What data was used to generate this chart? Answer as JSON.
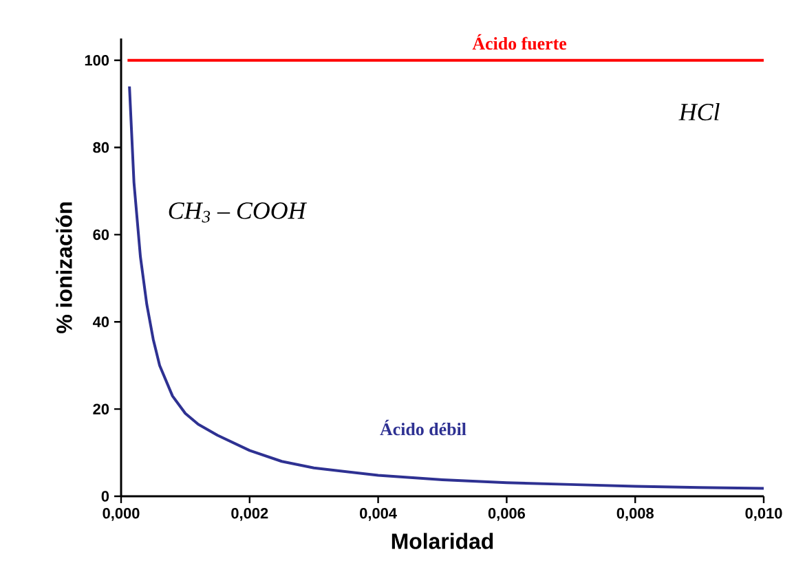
{
  "chart_data": {
    "type": "line",
    "xlabel": "Molaridad",
    "ylabel": "% ionización",
    "xlim": [
      0,
      0.01
    ],
    "ylim": [
      0,
      105
    ],
    "xticks": [
      {
        "value": 0,
        "label": "0,000"
      },
      {
        "value": 0.002,
        "label": "0,002"
      },
      {
        "value": 0.004,
        "label": "0,004"
      },
      {
        "value": 0.006,
        "label": "0,006"
      },
      {
        "value": 0.008,
        "label": "0,008"
      },
      {
        "value": 0.01,
        "label": "0,010"
      }
    ],
    "yticks": [
      0,
      20,
      40,
      60,
      80,
      100
    ],
    "series": [
      {
        "name": "Ácido fuerte",
        "color": "#ff0000",
        "x": [
          0.0001,
          0.01
        ],
        "values": [
          100,
          100
        ]
      },
      {
        "name": "Ácido débil",
        "color": "#2e3192",
        "x": [
          0.00013,
          0.0002,
          0.0003,
          0.0004,
          0.0005,
          0.0006,
          0.0008,
          0.001,
          0.0012,
          0.0015,
          0.002,
          0.0025,
          0.003,
          0.004,
          0.005,
          0.006,
          0.007,
          0.008,
          0.009,
          0.01
        ],
        "values": [
          94,
          72,
          55,
          44,
          36,
          30,
          23,
          19,
          16.5,
          14,
          10.5,
          8,
          6.5,
          4.8,
          3.8,
          3.1,
          2.7,
          2.3,
          2,
          1.8
        ]
      }
    ],
    "annotations": [
      "HCl",
      "CH$_{3}$ – COOH"
    ],
    "grid": false,
    "marker": "none",
    "line_style": "solid"
  }
}
